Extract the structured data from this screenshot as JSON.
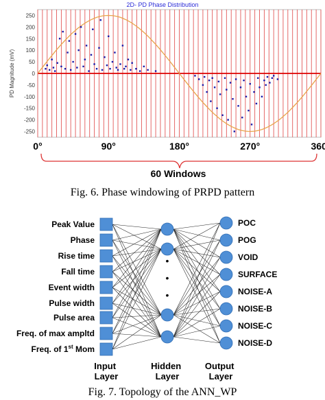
{
  "chart_data": {
    "type": "scatter",
    "title": "2D- PD Phase Distribution",
    "ylabel": "PD Magnitude (mV)",
    "xlabel": "",
    "xlim": [
      0,
      360
    ],
    "ylim": [
      -275,
      275
    ],
    "y_ticks": [
      250,
      200,
      150,
      100,
      50,
      0,
      -50,
      -100,
      -150,
      -200,
      -250
    ],
    "x_ticks": [
      "0°",
      "90°",
      "180°",
      "270°",
      "360°"
    ],
    "x_tick_values": [
      0,
      90,
      180,
      270,
      360
    ],
    "windows": 60,
    "window_label": "60 Windows",
    "reference_sine_amplitude": 250,
    "series": [
      {
        "points": [
          [
            10,
            20
          ],
          [
            12,
            35
          ],
          [
            15,
            15
          ],
          [
            18,
            60
          ],
          [
            20,
            25
          ],
          [
            22,
            10
          ],
          [
            25,
            45
          ],
          [
            28,
            150
          ],
          [
            30,
            30
          ],
          [
            32,
            180
          ],
          [
            35,
            20
          ],
          [
            38,
            90
          ],
          [
            40,
            140
          ],
          [
            42,
            15
          ],
          [
            45,
            50
          ],
          [
            48,
            170
          ],
          [
            50,
            25
          ],
          [
            52,
            100
          ],
          [
            55,
            200
          ],
          [
            58,
            30
          ],
          [
            60,
            60
          ],
          [
            62,
            120
          ],
          [
            65,
            10
          ],
          [
            68,
            80
          ],
          [
            70,
            190
          ],
          [
            72,
            40
          ],
          [
            75,
            20
          ],
          [
            78,
            110
          ],
          [
            80,
            230
          ],
          [
            82,
            15
          ],
          [
            85,
            70
          ],
          [
            88,
            35
          ],
          [
            90,
            160
          ],
          [
            92,
            20
          ],
          [
            95,
            50
          ],
          [
            98,
            90
          ],
          [
            100,
            25
          ],
          [
            102,
            15
          ],
          [
            105,
            40
          ],
          [
            108,
            120
          ],
          [
            110,
            20
          ],
          [
            112,
            30
          ],
          [
            115,
            60
          ],
          [
            118,
            15
          ],
          [
            120,
            45
          ],
          [
            125,
            20
          ],
          [
            130,
            10
          ],
          [
            135,
            30
          ],
          [
            140,
            15
          ],
          [
            150,
            10
          ],
          [
            200,
            -10
          ],
          [
            205,
            -25
          ],
          [
            210,
            -50
          ],
          [
            212,
            -15
          ],
          [
            215,
            -80
          ],
          [
            218,
            -30
          ],
          [
            220,
            -120
          ],
          [
            222,
            -20
          ],
          [
            225,
            -60
          ],
          [
            228,
            -150
          ],
          [
            230,
            -35
          ],
          [
            232,
            -90
          ],
          [
            235,
            -180
          ],
          [
            238,
            -20
          ],
          [
            240,
            -70
          ],
          [
            242,
            -200
          ],
          [
            245,
            -40
          ],
          [
            248,
            -110
          ],
          [
            250,
            -250
          ],
          [
            252,
            -25
          ],
          [
            255,
            -140
          ],
          [
            258,
            -60
          ],
          [
            260,
            -190
          ],
          [
            262,
            -30
          ],
          [
            265,
            -100
          ],
          [
            268,
            -160
          ],
          [
            270,
            -45
          ],
          [
            272,
            -220
          ],
          [
            275,
            -80
          ],
          [
            278,
            -130
          ],
          [
            280,
            -20
          ],
          [
            282,
            -60
          ],
          [
            285,
            -100
          ],
          [
            288,
            -30
          ],
          [
            290,
            -50
          ],
          [
            292,
            -15
          ],
          [
            295,
            -40
          ],
          [
            298,
            -20
          ],
          [
            300,
            -10
          ],
          [
            305,
            -25
          ]
        ]
      }
    ]
  },
  "fig6": {
    "caption": "Fig. 6. Phase windowing of PRPD pattern"
  },
  "fig7": {
    "caption": "Fig. 7. Topology of the ANN_WP",
    "inputs": [
      "Peak Value",
      "Phase",
      "Rise time",
      "Fall time",
      "Event width",
      "Pulse width",
      "Pulse area",
      "Freq. of max ampltd"
    ],
    "last_input_prefix": "Freq. of 1",
    "last_input_sup": "st",
    "last_input_suffix": " Mom",
    "hidden_dots": "•",
    "outputs": [
      "POC",
      "POG",
      "VOID",
      "SURFACE",
      "NOISE-A",
      "NOISE-B",
      "NOISE-C",
      "NOISE-D"
    ],
    "input_layer_label_1": "Input",
    "input_layer_label_2": "Layer",
    "hidden_layer_label_1": "Hidden",
    "hidden_layer_label_2": "Layer",
    "output_layer_label_1": "Output",
    "output_layer_label_2": "Layer",
    "colors": {
      "node_fill": "#4f8fd6",
      "node_stroke": "#2f6cb3",
      "window_lines": "#e25858",
      "sine": "#e8a44a",
      "points": "#1a1aa8"
    }
  }
}
